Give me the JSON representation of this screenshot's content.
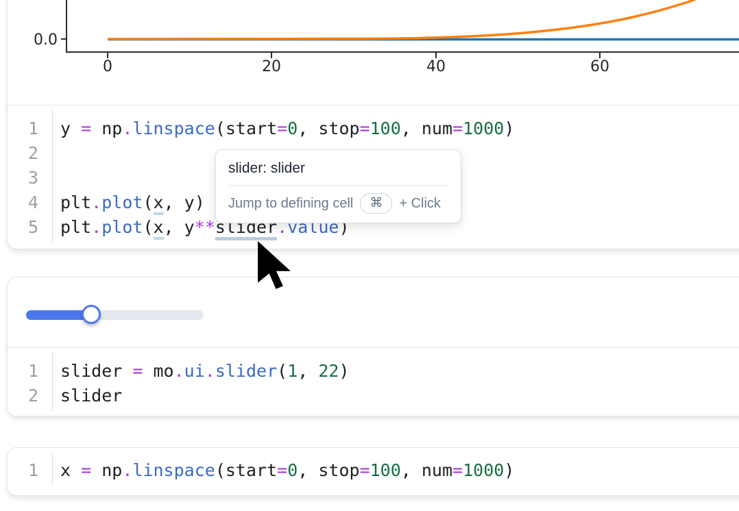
{
  "colors": {
    "accent_blue": "#4b79ed",
    "code_operator": "#a83bd8",
    "code_function": "#3a6ac3",
    "code_number": "#176e42",
    "plot_blue": "#1f77b4",
    "plot_orange": "#ff7f0e",
    "cell_border": "#e3e4e8"
  },
  "chart_data": {
    "type": "line",
    "title": "",
    "xlabel": "",
    "ylabel": "",
    "x_tick_labels": [
      "0",
      "20",
      "40",
      "60"
    ],
    "x_ticks": [
      0,
      20,
      40,
      60
    ],
    "y_tick_label": "0.0",
    "xlim_visible": [
      0,
      77
    ],
    "grid": false,
    "legend": "none",
    "series": [
      {
        "name": "plt.plot(x, y)",
        "color": "#1f77b4",
        "shape": "flat line at 0.0 across full x range"
      },
      {
        "name": "plt.plot(x, y**slider.value)",
        "color": "#ff7f0e",
        "shape": "flat near 0 until x≈45, then steep power-curve rise exiting top of view by x≈77"
      }
    ]
  },
  "cells": [
    {
      "id": "plot-cell",
      "lines": [
        {
          "num": "1",
          "tokens": [
            [
              "y ",
              "p"
            ],
            [
              "=",
              "o"
            ],
            [
              " np",
              "p"
            ],
            [
              ".",
              "o"
            ],
            [
              "linspace",
              "f"
            ],
            [
              "(start",
              "p"
            ],
            [
              "=",
              "o"
            ],
            [
              "0",
              "n"
            ],
            [
              ", stop",
              "p"
            ],
            [
              "=",
              "o"
            ],
            [
              "100",
              "n"
            ],
            [
              ", num",
              "p"
            ],
            [
              "=",
              "o"
            ],
            [
              "1000",
              "n"
            ],
            [
              ")",
              "p"
            ]
          ]
        },
        {
          "num": "2",
          "tokens": []
        },
        {
          "num": "3",
          "tokens": []
        },
        {
          "num": "4",
          "tokens": [
            [
              "plt",
              "p"
            ],
            [
              ".",
              "o"
            ],
            [
              "plot",
              "f"
            ],
            [
              "(",
              "p"
            ],
            [
              "x",
              "p",
              "ul"
            ],
            [
              ", y)",
              "p"
            ]
          ]
        },
        {
          "num": "5",
          "tokens": [
            [
              "plt",
              "p"
            ],
            [
              ".",
              "o"
            ],
            [
              "plot",
              "f"
            ],
            [
              "(",
              "p"
            ],
            [
              "x",
              "p",
              "ul"
            ],
            [
              ", y",
              "p"
            ],
            [
              "**",
              "o"
            ],
            [
              "slider",
              "p",
              "ul2"
            ],
            [
              ".",
              "o"
            ],
            [
              "value",
              "f"
            ],
            [
              ")",
              "p"
            ]
          ]
        }
      ]
    },
    {
      "id": "slider-cell",
      "lines": [
        {
          "num": "1",
          "tokens": [
            [
              "slider ",
              "p"
            ],
            [
              "=",
              "o"
            ],
            [
              " mo",
              "p"
            ],
            [
              ".",
              "o"
            ],
            [
              "ui",
              "f"
            ],
            [
              ".",
              "o"
            ],
            [
              "slider",
              "f"
            ],
            [
              "(",
              "p"
            ],
            [
              "1",
              "n"
            ],
            [
              ", ",
              "p"
            ],
            [
              "22",
              "n"
            ],
            [
              ")",
              "p"
            ]
          ]
        },
        {
          "num": "2",
          "tokens": [
            [
              "slider",
              "p"
            ]
          ]
        }
      ]
    },
    {
      "id": "x-cell",
      "lines": [
        {
          "num": "1",
          "tokens": [
            [
              "x ",
              "p"
            ],
            [
              "=",
              "o"
            ],
            [
              " np",
              "p"
            ],
            [
              ".",
              "o"
            ],
            [
              "linspace",
              "f"
            ],
            [
              "(start",
              "p"
            ],
            [
              "=",
              "o"
            ],
            [
              "0",
              "n"
            ],
            [
              ", stop",
              "p"
            ],
            [
              "=",
              "o"
            ],
            [
              "100",
              "n"
            ],
            [
              ", num",
              "p"
            ],
            [
              "=",
              "o"
            ],
            [
              "1000",
              "n"
            ],
            [
              ")",
              "p"
            ]
          ]
        }
      ]
    }
  ],
  "tooltip": {
    "title": "slider: slider",
    "action": "Jump to defining cell",
    "key": "⌘",
    "suffix": "+ Click"
  },
  "slider": {
    "fill_percent": 32
  }
}
